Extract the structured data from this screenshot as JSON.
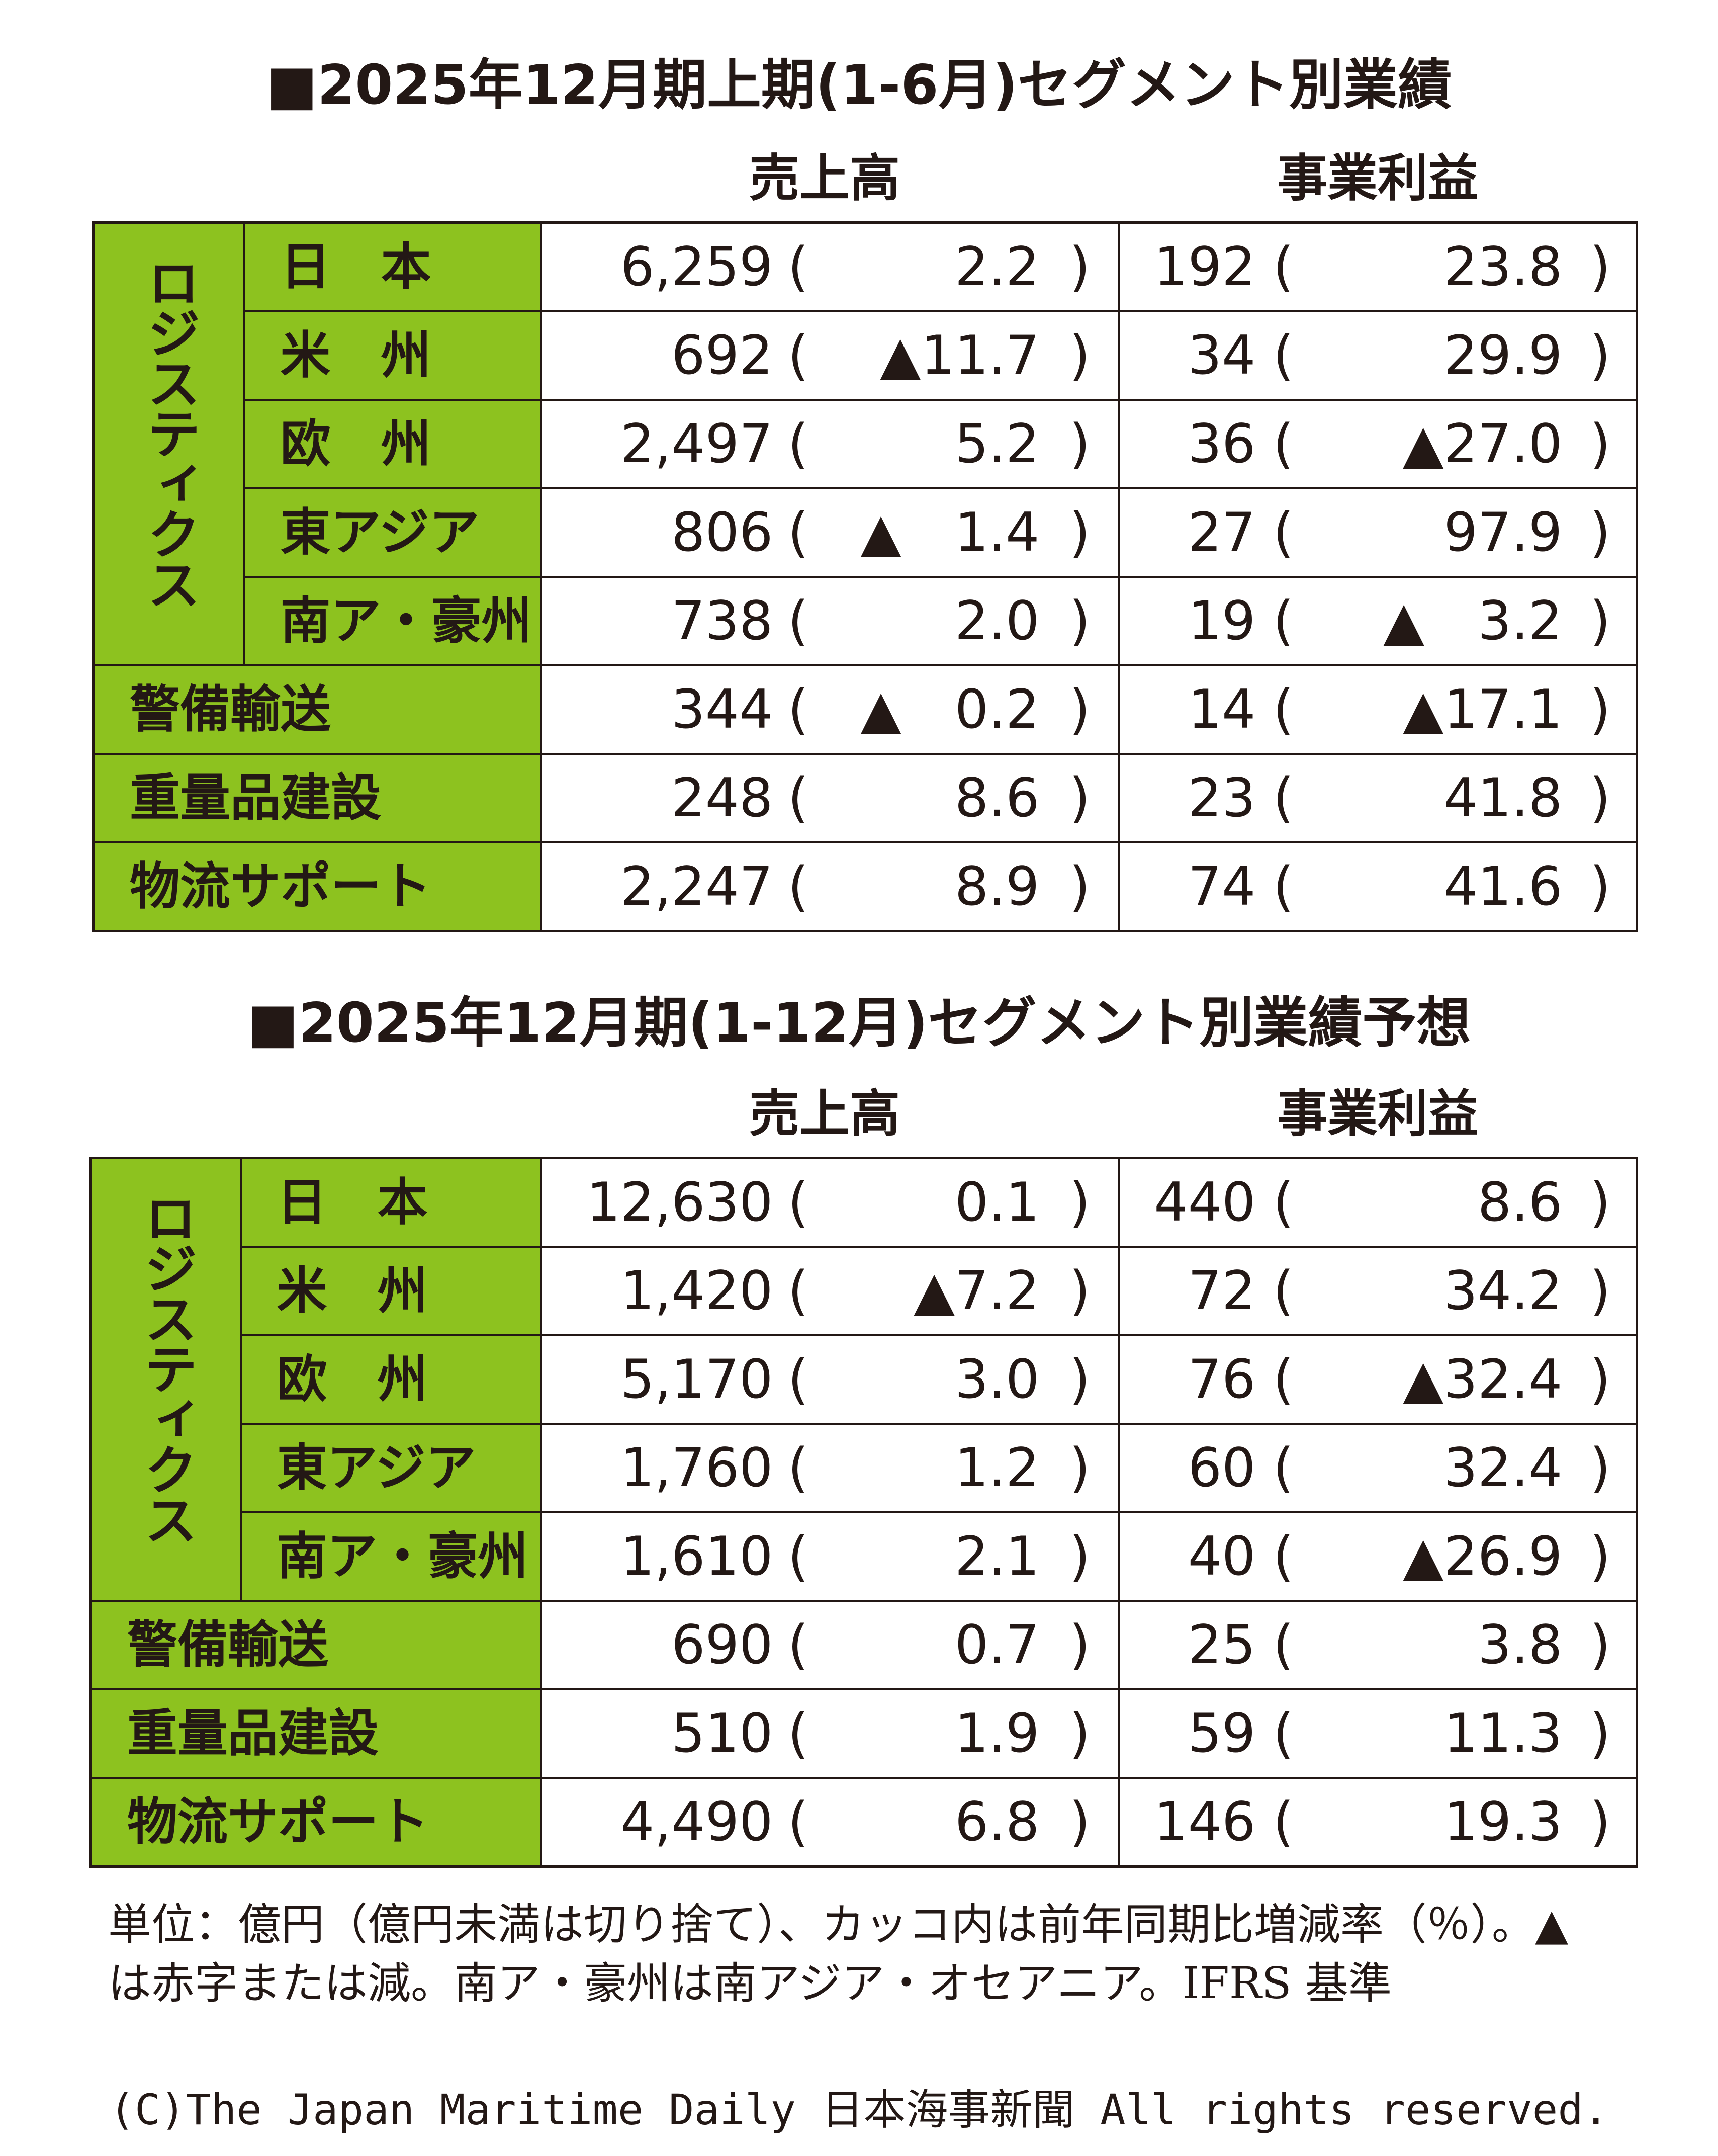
{
  "tables": [
    {
      "title": "■2025年12月期上期(1-6月)セグメント別業績",
      "sales_header": "売上高",
      "profit_header": "事業利益",
      "group_label": "ロジスティクス",
      "rows": [
        {
          "label": "日　本",
          "sales": "6,259",
          "sales_chg": "2.2",
          "profit": "192",
          "profit_chg": "23.8"
        },
        {
          "label": "米　州",
          "sales": "692",
          "sales_chg": "▲11.7",
          "profit": "34",
          "profit_chg": "29.9"
        },
        {
          "label": "欧　州",
          "sales": "2,497",
          "sales_chg": "5.2",
          "profit": "36",
          "profit_chg": "▲27.0"
        },
        {
          "label": "東アジア",
          "sales": "806",
          "sales_chg": "▲　1.4",
          "profit": "27",
          "profit_chg": "97.9"
        },
        {
          "label": "南ア・豪州",
          "sales": "738",
          "sales_chg": "2.0",
          "profit": "19",
          "profit_chg": "▲　3.2"
        },
        {
          "label": "警備輸送",
          "sales": "344",
          "sales_chg": "▲　0.2",
          "profit": "14",
          "profit_chg": "▲17.1"
        },
        {
          "label": "重量品建設",
          "sales": "248",
          "sales_chg": "8.6",
          "profit": "23",
          "profit_chg": "41.8"
        },
        {
          "label": "物流サポート",
          "sales": "2,247",
          "sales_chg": "8.9",
          "profit": "74",
          "profit_chg": "41.6"
        }
      ]
    },
    {
      "title": "■2025年12月期(1-12月)セグメント別業績予想",
      "sales_header": "売上高",
      "profit_header": "事業利益",
      "group_label": "ロジスティクス",
      "rows": [
        {
          "label": "日　本",
          "sales": "12,630",
          "sales_chg": "0.1",
          "profit": "440",
          "profit_chg": "8.6"
        },
        {
          "label": "米　州",
          "sales": "1,420",
          "sales_chg": "▲7.2",
          "profit": "72",
          "profit_chg": "34.2"
        },
        {
          "label": "欧　州",
          "sales": "5,170",
          "sales_chg": "3.0",
          "profit": "76",
          "profit_chg": "▲32.4"
        },
        {
          "label": "東アジア",
          "sales": "1,760",
          "sales_chg": "1.2",
          "profit": "60",
          "profit_chg": "32.4"
        },
        {
          "label": "南ア・豪州",
          "sales": "1,610",
          "sales_chg": "2.1",
          "profit": "40",
          "profit_chg": "▲26.9"
        },
        {
          "label": "警備輸送",
          "sales": "690",
          "sales_chg": "0.7",
          "profit": "25",
          "profit_chg": "3.8"
        },
        {
          "label": "重量品建設",
          "sales": "510",
          "sales_chg": "1.9",
          "profit": "59",
          "profit_chg": "11.3"
        },
        {
          "label": "物流サポート",
          "sales": "4,490",
          "sales_chg": "6.8",
          "profit": "146",
          "profit_chg": "19.3"
        }
      ]
    }
  ],
  "paren_open": "(",
  "paren_close": ")",
  "note_line1": "単位：億円（億円未満は切り捨て）、カッコ内は前年同期比増減率（％）。▲",
  "note_line2": "は赤字または減。南ア・豪州は南アジア・オセアニア。IFRS 基準",
  "copyright": "(C)The Japan Maritime Daily 日本海事新聞 All rights reserved."
}
